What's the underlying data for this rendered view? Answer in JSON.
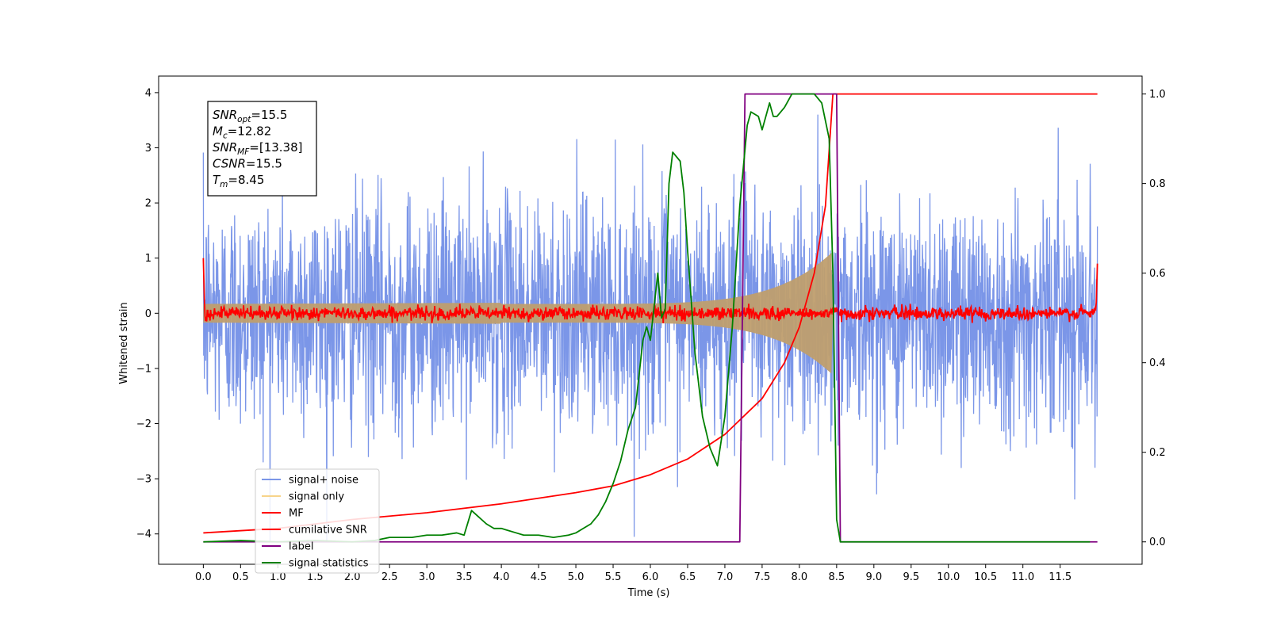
{
  "chart_data": {
    "type": "line",
    "xlabel": "Time (s)",
    "ylabel": "Whitened strain",
    "xlim": [
      -0.6,
      12.6
    ],
    "ylim": [
      -4.55,
      4.3
    ],
    "ylim_right": [
      -0.05,
      1.04
    ],
    "x_ticks": [
      "0.0",
      "0.5",
      "1.0",
      "1.5",
      "2.0",
      "2.5",
      "3.0",
      "3.5",
      "4.0",
      "4.5",
      "5.0",
      "5.5",
      "6.0",
      "6.5",
      "7.0",
      "7.5",
      "8.0",
      "8.5",
      "9.0",
      "9.5",
      "10.0",
      "10.5",
      "11.0",
      "11.5"
    ],
    "y_ticks_left": [
      "4",
      "3",
      "2",
      "1",
      "0",
      "−1",
      "−2",
      "−3",
      "−4"
    ],
    "y_ticks_right": [
      "1.0",
      "0.8",
      "0.6",
      "0.4",
      "0.2",
      "0.0"
    ],
    "annotation": {
      "lines": [
        {
          "sym": "SNR",
          "sub": "opt",
          "val": "=15.5"
        },
        {
          "sym": "M",
          "sub": "c",
          "val": "=12.82"
        },
        {
          "sym": "SNR",
          "sub": "MF",
          "val": "=[13.38]"
        },
        {
          "sym": "CSNR",
          "sub": "",
          "val": "=15.5"
        },
        {
          "sym": "T",
          "sub": "m",
          "val": "=8.45"
        }
      ]
    },
    "legend": {
      "location": "lower-left",
      "entries": [
        {
          "label": "signal+ noise",
          "color": "#7b96e8"
        },
        {
          "label": "signal only",
          "color": "#f7d48a"
        },
        {
          "label": "MF",
          "color": "#ff0000"
        },
        {
          "label": "cumilative SNR",
          "color": "#ff0000"
        },
        {
          "label": "label",
          "color": "#800080"
        },
        {
          "label": "signal statistics",
          "color": "#008000"
        }
      ]
    },
    "series": [
      {
        "name": "signal+ noise",
        "axis": "left",
        "color": "#7b96e8",
        "description_x_range": [
          0.0,
          12.0
        ],
        "noise_sigma": 1.0
      },
      {
        "name": "signal only",
        "axis": "left",
        "color": "#f7d48a",
        "chirp_end": 8.45
      },
      {
        "name": "MF",
        "axis": "left",
        "color": "#ff0000",
        "x_range": [
          0.0,
          12.0
        ]
      },
      {
        "name": "cumilative SNR",
        "axis": "right",
        "color": "#ff0000",
        "x": [
          0.0,
          1,
          2,
          3,
          4,
          5,
          5.5,
          6,
          6.5,
          7,
          7.5,
          7.8,
          8.0,
          8.2,
          8.35,
          8.45,
          9,
          10,
          11,
          12
        ],
        "y": [
          0.02,
          0.03,
          0.05,
          0.065,
          0.085,
          0.11,
          0.125,
          0.15,
          0.185,
          0.24,
          0.32,
          0.4,
          0.48,
          0.6,
          0.75,
          1.0,
          1.0,
          1.0,
          1.0,
          1.0
        ]
      },
      {
        "name": "label",
        "axis": "right",
        "color": "#800080",
        "x": [
          0.0,
          7.2,
          7.27,
          8.5,
          8.55,
          12.0
        ],
        "y": [
          0.0,
          0.0,
          1.0,
          1.0,
          0.0,
          0.0
        ]
      },
      {
        "name": "signal statistics",
        "axis": "right",
        "color": "#008000",
        "x": [
          0.0,
          0.5,
          1.0,
          1.5,
          2.0,
          2.3,
          2.5,
          2.8,
          3.0,
          3.2,
          3.4,
          3.5,
          3.6,
          3.7,
          3.8,
          3.9,
          4.0,
          4.1,
          4.2,
          4.3,
          4.5,
          4.7,
          4.9,
          5.0,
          5.1,
          5.2,
          5.3,
          5.4,
          5.5,
          5.6,
          5.7,
          5.8,
          5.9,
          5.95,
          6.0,
          6.1,
          6.15,
          6.2,
          6.25,
          6.3,
          6.4,
          6.45,
          6.5,
          6.6,
          6.7,
          6.8,
          6.9,
          7.0,
          7.1,
          7.2,
          7.3,
          7.35,
          7.45,
          7.5,
          7.6,
          7.65,
          7.7,
          7.8,
          7.9,
          8.0,
          8.1,
          8.2,
          8.3,
          8.4,
          8.45,
          8.5,
          8.55,
          8.6,
          9.0,
          10.0,
          11.0,
          11.9
        ],
        "y": [
          0.0,
          0.003,
          0.0,
          0.003,
          0.0,
          0.003,
          0.01,
          0.01,
          0.015,
          0.015,
          0.02,
          0.015,
          0.07,
          0.055,
          0.04,
          0.03,
          0.03,
          0.025,
          0.02,
          0.015,
          0.015,
          0.01,
          0.015,
          0.02,
          0.03,
          0.04,
          0.06,
          0.09,
          0.13,
          0.18,
          0.25,
          0.3,
          0.45,
          0.48,
          0.45,
          0.6,
          0.5,
          0.52,
          0.8,
          0.87,
          0.85,
          0.78,
          0.65,
          0.42,
          0.28,
          0.21,
          0.17,
          0.28,
          0.48,
          0.75,
          0.93,
          0.96,
          0.95,
          0.92,
          0.98,
          0.95,
          0.95,
          0.97,
          1.0,
          1.0,
          1.0,
          1.0,
          0.98,
          0.9,
          0.6,
          0.05,
          0.0,
          0.0,
          0.0,
          0.0,
          0.0,
          0.0
        ]
      }
    ]
  }
}
